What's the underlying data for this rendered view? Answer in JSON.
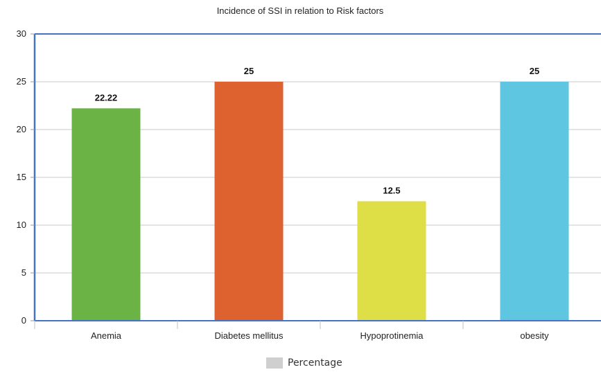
{
  "chart_data": {
    "type": "bar",
    "title": "Incidence of SSI in relation to Risk factors",
    "categories": [
      "Anemia",
      "Diabetes mellitus",
      "Hypoprotinemia",
      "obesity"
    ],
    "series": [
      {
        "name": "Percentage",
        "values": [
          22.22,
          25,
          12.5,
          25
        ],
        "value_labels": [
          "22.22",
          "25",
          "12.5",
          "25"
        ]
      }
    ],
    "bar_colors": [
      "#6ab344",
      "#dd6230",
      "#dede47",
      "#5ec6e0"
    ],
    "legend_color": "#cfcfcf",
    "axis_color": "#4472c4",
    "ylim": [
      0,
      30
    ],
    "yticks": [
      0,
      5,
      10,
      15,
      20,
      25,
      30
    ],
    "grid": true,
    "legend_position": "bottom"
  }
}
